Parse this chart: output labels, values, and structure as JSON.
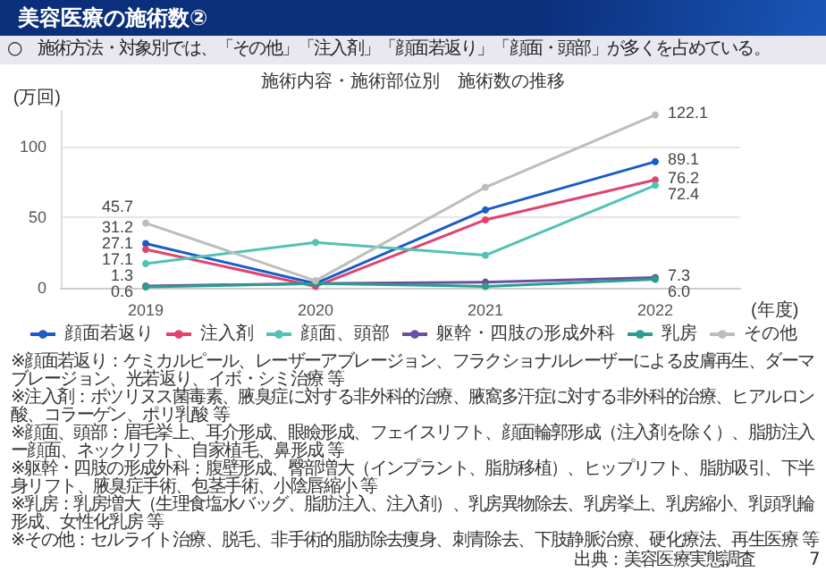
{
  "chart_data": {
    "type": "line",
    "subtitle": "美容医療の施術数②",
    "title": "施術内容・施術部位別　施術数の推移",
    "xlabel": "(年度)",
    "ylabel": "(万回)",
    "categories": [
      "2019",
      "2020",
      "2021",
      "2022"
    ],
    "series": [
      {
        "name": "顔面若返り",
        "color": "#1a5cc8",
        "values": [
          31.2,
          3,
          55,
          89.1
        ],
        "value_labels": [
          "31.2",
          null,
          null,
          "89.1"
        ]
      },
      {
        "name": "注入剤",
        "color": "#e3426e",
        "values": [
          27.1,
          1,
          48,
          76.2
        ],
        "value_labels": [
          "27.1",
          null,
          null,
          "76.2"
        ]
      },
      {
        "name": "顔面、頭部",
        "color": "#52c2b6",
        "values": [
          17.1,
          32,
          23,
          72.4
        ],
        "value_labels": [
          "17.1",
          null,
          null,
          "72.4"
        ]
      },
      {
        "name": "躯幹・四肢の形成外科",
        "color": "#6b4fa3",
        "values": [
          1.3,
          3,
          4,
          7.3
        ],
        "value_labels": [
          "1.3",
          null,
          null,
          "7.3"
        ]
      },
      {
        "name": "乳房",
        "color": "#2a9d8f",
        "values": [
          0.6,
          3,
          1,
          6.0
        ],
        "value_labels": [
          "0.6",
          null,
          null,
          "6.0"
        ]
      },
      {
        "name": "その他",
        "color": "#bdbdbd",
        "values": [
          45.7,
          5,
          71,
          122.1
        ],
        "value_labels": [
          "45.7",
          null,
          null,
          "122.1"
        ]
      }
    ],
    "ylim": [
      0,
      125
    ],
    "yticks": [
      0,
      50,
      100
    ],
    "grid": "y",
    "legend": "bottom",
    "marker": "circle",
    "annotations": [
      "○　施術方法・対象別では、「その他」「注入剤」「顔面若返り」「顔面・頭部」が多くを占めている。",
      "※顔面若返り：ケミカルピール、レーザーアブレージョン、フラクショナルレーザーによる皮膚再生、ダーマブレージョン、光若返り、イボ・シミ治療 等",
      "※注入剤：ボツリヌス菌毒素、腋臭症に対する非外科的治療、腋窩多汗症に対する非外科的治療、ヒアルロン酸、コラーゲン、ポリ乳酸 等",
      "※顔面、頭部：眉毛挙上、耳介形成、眼瞼形成、フェイスリフト、顔面輪郭形成（注入剤を除く）、脂肪注入ー顔面、ネックリフト、自家植毛、鼻形成 等",
      "※躯幹・四肢の形成外科：腹壁形成、臀部増大（インプラント、脂肪移植）、ヒップリフト、脂肪吸引、下半身リフト、腋臭症手術、包茎手術、小陰唇縮小 等",
      "※乳房：乳房増大（生理食塩水バッグ、脂肪注入、注入剤）、乳房異物除去、乳房挙上、乳房縮小、乳頭乳輪形成、女性化乳房 等",
      "※その他：セルライト治療、脱毛、非手術的脂肪除去痩身、刺青除去、下肢静脈治療、硬化療法、再生医療 等",
      "出典：美容医療実態調査",
      "7"
    ]
  }
}
